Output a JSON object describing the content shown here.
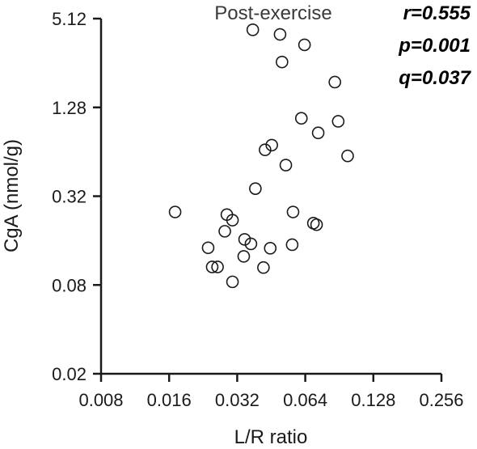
{
  "chart_data": {
    "type": "scatter",
    "title": "Post-exercise",
    "xlabel": "L/R ratio",
    "ylabel": "CgA (nmol/g)",
    "x_scale": "log2",
    "y_scale": "log4",
    "xlim": [
      0.008,
      0.256
    ],
    "ylim": [
      0.02,
      5.12
    ],
    "x_ticks": [
      0.008,
      0.016,
      0.032,
      0.064,
      0.128,
      0.256
    ],
    "x_tick_labels": [
      "0.008",
      "0.016",
      "0.032",
      "0.064",
      "0.128",
      "0.256"
    ],
    "y_ticks": [
      0.02,
      0.08,
      0.32,
      1.28,
      5.12
    ],
    "y_tick_labels": [
      "0.02",
      "0.08",
      "0.32",
      "1.28",
      "5.12"
    ],
    "annotations": [
      "r=0.555",
      "p=0.001",
      "q=0.037"
    ],
    "grid": false,
    "marker": "open-circle",
    "points": [
      {
        "x": 0.0375,
        "y": 4.3
      },
      {
        "x": 0.0495,
        "y": 4.0
      },
      {
        "x": 0.0635,
        "y": 3.4
      },
      {
        "x": 0.0505,
        "y": 2.6
      },
      {
        "x": 0.0865,
        "y": 1.9
      },
      {
        "x": 0.0615,
        "y": 1.08
      },
      {
        "x": 0.0895,
        "y": 1.03
      },
      {
        "x": 0.073,
        "y": 0.86
      },
      {
        "x": 0.0985,
        "y": 0.6
      },
      {
        "x": 0.0455,
        "y": 0.71
      },
      {
        "x": 0.0425,
        "y": 0.66
      },
      {
        "x": 0.0525,
        "y": 0.52
      },
      {
        "x": 0.0385,
        "y": 0.36
      },
      {
        "x": 0.017,
        "y": 0.25
      },
      {
        "x": 0.0288,
        "y": 0.24
      },
      {
        "x": 0.0305,
        "y": 0.22
      },
      {
        "x": 0.0565,
        "y": 0.25
      },
      {
        "x": 0.0695,
        "y": 0.21
      },
      {
        "x": 0.0718,
        "y": 0.205
      },
      {
        "x": 0.0282,
        "y": 0.185
      },
      {
        "x": 0.0345,
        "y": 0.163
      },
      {
        "x": 0.0368,
        "y": 0.152
      },
      {
        "x": 0.0238,
        "y": 0.143
      },
      {
        "x": 0.0448,
        "y": 0.142
      },
      {
        "x": 0.056,
        "y": 0.15
      },
      {
        "x": 0.0342,
        "y": 0.125
      },
      {
        "x": 0.0248,
        "y": 0.106
      },
      {
        "x": 0.0262,
        "y": 0.106
      },
      {
        "x": 0.0418,
        "y": 0.105
      },
      {
        "x": 0.0305,
        "y": 0.084
      }
    ]
  }
}
